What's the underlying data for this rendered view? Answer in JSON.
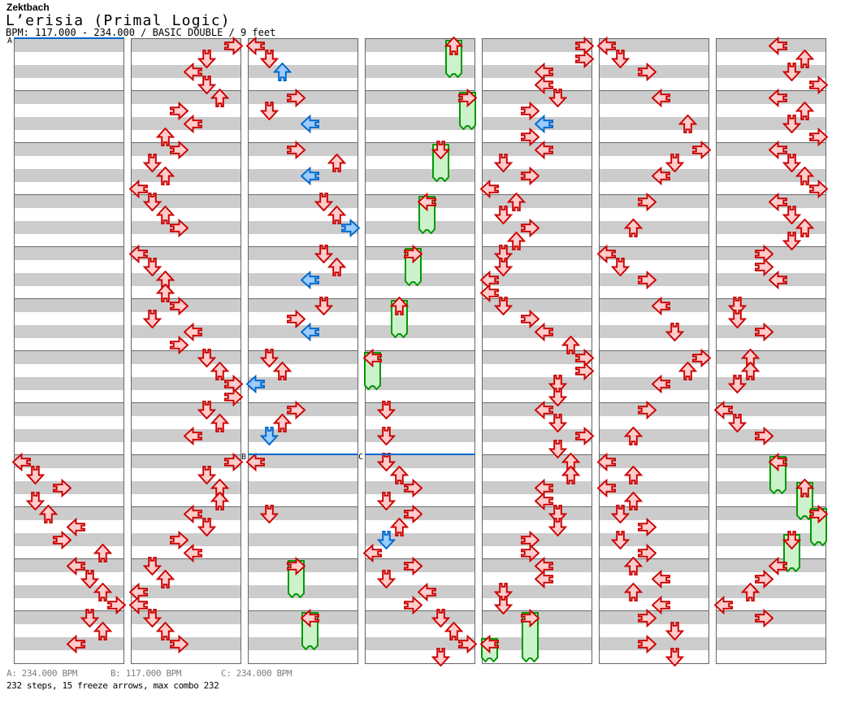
{
  "header": {
    "artist": "Zektbach",
    "title": "L’erisia (Primal Logic)",
    "info": "BPM: 117.000 - 234.000 / BASIC DOUBLE / 9 feet"
  },
  "footer": {
    "legend": [
      {
        "label": "A",
        "text": "A: 234.000 BPM"
      },
      {
        "label": "B",
        "text": "B: 117.000 BPM"
      },
      {
        "label": "C",
        "text": "C: 234.000 BPM"
      }
    ],
    "summary": "232 steps, 15 freeze arrows, max combo 232"
  },
  "colors": {
    "red_outline": "#cc0000",
    "red_fill": "#ffcccc",
    "blue_outline": "#0066cc",
    "blue_fill": "#99ccff",
    "green_outline": "#009900",
    "green_fill": "#ccf2cc",
    "stripe_gray": "#cccccc",
    "panel_border": "#666666",
    "marker_blue": "#0066cc"
  },
  "markers": [
    {
      "label": "A",
      "panel": 0,
      "row": 0
    },
    {
      "label": "B",
      "panel": 2,
      "row": 32
    },
    {
      "label": "C",
      "panel": 3,
      "row": 32
    }
  ],
  "chart": {
    "lanes_per_panel": 8,
    "rows_per_panel": 48,
    "lane_directions": [
      "left",
      "down",
      "up",
      "right",
      "left",
      "down",
      "up",
      "right"
    ],
    "panels": [
      {
        "taps": [
          [
            32,
            0
          ],
          [
            33,
            1
          ],
          [
            34,
            3
          ],
          [
            35,
            1
          ],
          [
            36,
            2
          ],
          [
            37,
            4
          ],
          [
            38,
            3
          ],
          [
            39,
            6
          ],
          [
            40,
            4
          ],
          [
            41,
            5
          ],
          [
            42,
            6
          ],
          [
            43,
            7
          ],
          [
            44,
            5
          ],
          [
            45,
            6
          ],
          [
            46,
            4
          ]
        ],
        "freezes": []
      },
      {
        "taps": [
          [
            0,
            7
          ],
          [
            1,
            5
          ],
          [
            2,
            4
          ],
          [
            3,
            5
          ],
          [
            4,
            6
          ],
          [
            5,
            3
          ],
          [
            6,
            4
          ],
          [
            7,
            2
          ],
          [
            8,
            3
          ],
          [
            9,
            1
          ],
          [
            10,
            2
          ],
          [
            11,
            0
          ],
          [
            12,
            1
          ],
          [
            13,
            2
          ],
          [
            14,
            3
          ],
          [
            16,
            0
          ],
          [
            17,
            1
          ],
          [
            18,
            2
          ],
          [
            19,
            2
          ],
          [
            20,
            3
          ],
          [
            21,
            1
          ],
          [
            22,
            4
          ],
          [
            23,
            3
          ],
          [
            24,
            5
          ],
          [
            25,
            6
          ],
          [
            26,
            7
          ],
          [
            27,
            7
          ],
          [
            28,
            5
          ],
          [
            29,
            6
          ],
          [
            30,
            4
          ],
          [
            32,
            7
          ],
          [
            33,
            5
          ],
          [
            34,
            6
          ],
          [
            35,
            6
          ],
          [
            36,
            4
          ],
          [
            37,
            5
          ],
          [
            38,
            3
          ],
          [
            39,
            4
          ],
          [
            40,
            1
          ],
          [
            41,
            2
          ],
          [
            42,
            0
          ],
          [
            43,
            0
          ],
          [
            44,
            1
          ],
          [
            45,
            2
          ],
          [
            46,
            3
          ]
        ],
        "freezes": []
      },
      {
        "taps": [
          [
            0,
            0
          ],
          [
            1,
            1
          ],
          [
            2,
            2,
            1
          ],
          [
            4,
            3
          ],
          [
            5,
            1
          ],
          [
            6,
            4,
            1
          ],
          [
            8,
            3
          ],
          [
            9,
            6
          ],
          [
            10,
            4,
            1
          ],
          [
            12,
            5
          ],
          [
            13,
            6
          ],
          [
            14,
            7,
            1
          ],
          [
            16,
            5
          ],
          [
            17,
            6
          ],
          [
            18,
            4,
            1
          ],
          [
            20,
            5
          ],
          [
            21,
            3
          ],
          [
            22,
            4,
            1
          ],
          [
            24,
            1
          ],
          [
            25,
            2
          ],
          [
            26,
            0,
            1
          ],
          [
            28,
            3
          ],
          [
            29,
            2
          ],
          [
            30,
            1,
            1
          ],
          [
            32,
            0
          ],
          [
            36,
            1
          ]
        ],
        "freezes": [
          [
            40,
            3,
            40
          ],
          [
            44,
            4,
            40
          ]
        ]
      },
      {
        "taps": [
          [
            28,
            1
          ],
          [
            30,
            1
          ],
          [
            32,
            1
          ],
          [
            33,
            2
          ],
          [
            34,
            3
          ],
          [
            35,
            1
          ],
          [
            36,
            3
          ],
          [
            37,
            2
          ],
          [
            38,
            1,
            1
          ],
          [
            39,
            0
          ],
          [
            40,
            3
          ],
          [
            41,
            1
          ],
          [
            42,
            4
          ],
          [
            43,
            3
          ],
          [
            44,
            5
          ],
          [
            45,
            6
          ],
          [
            46,
            7
          ],
          [
            47,
            5
          ]
        ],
        "freezes": [
          [
            0,
            6,
            40
          ],
          [
            4,
            7,
            40
          ],
          [
            8,
            5,
            40
          ],
          [
            12,
            4,
            40
          ],
          [
            16,
            3,
            40
          ],
          [
            20,
            2,
            40
          ],
          [
            24,
            0,
            40
          ]
        ]
      },
      {
        "taps": [
          [
            0,
            7
          ],
          [
            1,
            7
          ],
          [
            2,
            4
          ],
          [
            3,
            4
          ],
          [
            4,
            5
          ],
          [
            5,
            3
          ],
          [
            6,
            4,
            1
          ],
          [
            7,
            3
          ],
          [
            8,
            4
          ],
          [
            9,
            1
          ],
          [
            10,
            3
          ],
          [
            11,
            0
          ],
          [
            12,
            2
          ],
          [
            13,
            1
          ],
          [
            14,
            3
          ],
          [
            15,
            2
          ],
          [
            16,
            1
          ],
          [
            17,
            1
          ],
          [
            18,
            0
          ],
          [
            19,
            0
          ],
          [
            20,
            1
          ],
          [
            21,
            3
          ],
          [
            22,
            4
          ],
          [
            23,
            6
          ],
          [
            24,
            7
          ],
          [
            25,
            7
          ],
          [
            26,
            5
          ],
          [
            27,
            5
          ],
          [
            28,
            4
          ],
          [
            29,
            5
          ],
          [
            30,
            7
          ],
          [
            31,
            5
          ],
          [
            32,
            6
          ],
          [
            33,
            6
          ],
          [
            34,
            4
          ],
          [
            35,
            4
          ],
          [
            36,
            5
          ],
          [
            37,
            5
          ],
          [
            38,
            3
          ],
          [
            39,
            3
          ],
          [
            40,
            4
          ],
          [
            41,
            4
          ],
          [
            42,
            1
          ],
          [
            43,
            1
          ]
        ],
        "freezes": [
          [
            44,
            3,
            55
          ],
          [
            46,
            0,
            23
          ]
        ]
      },
      {
        "taps": [
          [
            0,
            0
          ],
          [
            1,
            1
          ],
          [
            2,
            3
          ],
          [
            4,
            4
          ],
          [
            6,
            6
          ],
          [
            8,
            7
          ],
          [
            9,
            5
          ],
          [
            10,
            4
          ],
          [
            12,
            3
          ],
          [
            14,
            2
          ],
          [
            16,
            0
          ],
          [
            17,
            1
          ],
          [
            18,
            3
          ],
          [
            20,
            4
          ],
          [
            22,
            5
          ],
          [
            24,
            7
          ],
          [
            25,
            6
          ],
          [
            26,
            4
          ],
          [
            28,
            3
          ],
          [
            30,
            2
          ],
          [
            32,
            0
          ],
          [
            33,
            2
          ],
          [
            34,
            0
          ],
          [
            35,
            2
          ],
          [
            36,
            1
          ],
          [
            37,
            3
          ],
          [
            38,
            1
          ],
          [
            39,
            3
          ],
          [
            40,
            2
          ],
          [
            41,
            4
          ],
          [
            42,
            2
          ],
          [
            43,
            4
          ],
          [
            44,
            3
          ],
          [
            45,
            5
          ],
          [
            46,
            3
          ],
          [
            47,
            5
          ]
        ],
        "freezes": []
      },
      {
        "taps": [
          [
            0,
            4
          ],
          [
            1,
            6
          ],
          [
            2,
            5
          ],
          [
            3,
            7
          ],
          [
            4,
            4
          ],
          [
            5,
            6
          ],
          [
            6,
            5
          ],
          [
            7,
            7
          ],
          [
            8,
            4
          ],
          [
            9,
            5
          ],
          [
            10,
            6
          ],
          [
            11,
            7
          ],
          [
            12,
            4
          ],
          [
            13,
            5
          ],
          [
            14,
            6
          ],
          [
            15,
            5
          ],
          [
            16,
            3
          ],
          [
            17,
            3
          ],
          [
            18,
            4
          ],
          [
            20,
            1
          ],
          [
            21,
            1
          ],
          [
            22,
            3
          ],
          [
            24,
            2
          ],
          [
            25,
            2
          ],
          [
            26,
            1
          ],
          [
            28,
            0
          ],
          [
            29,
            1
          ],
          [
            30,
            3
          ],
          [
            40,
            4
          ],
          [
            41,
            3
          ],
          [
            42,
            2
          ],
          [
            43,
            0
          ],
          [
            44,
            3
          ]
        ],
        "freezes": [
          [
            32,
            4,
            40
          ],
          [
            34,
            6,
            40
          ],
          [
            36,
            7,
            40
          ],
          [
            38,
            5,
            40
          ]
        ]
      }
    ]
  }
}
